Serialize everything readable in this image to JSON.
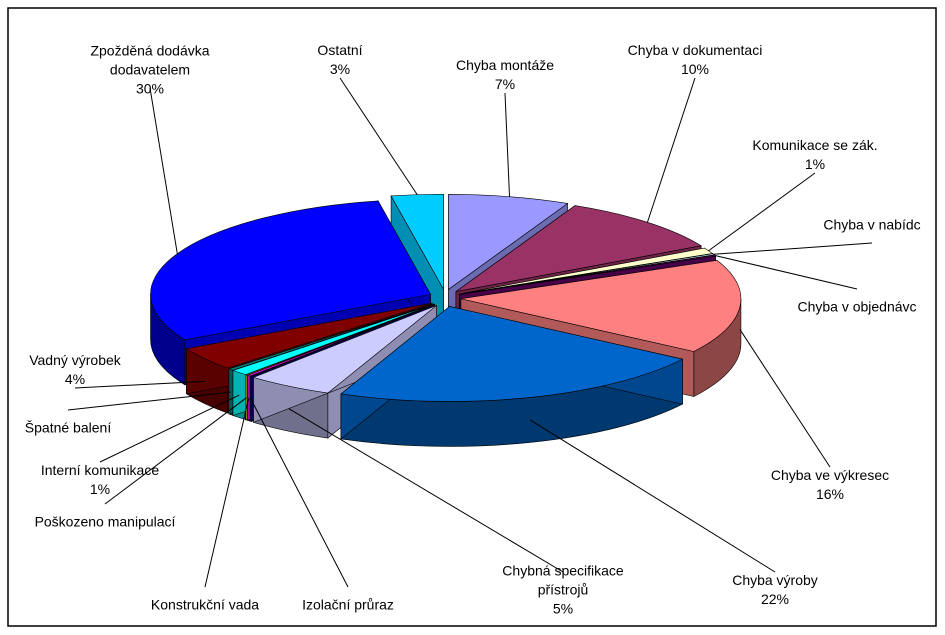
{
  "chart_data": {
    "type": "pie",
    "categories": [
      "Chyba montáže",
      "Chyba v dokumentaci",
      "Komunikace se zák.",
      "Chyba v nabídc",
      "Chyba v objednávc",
      "Chyba ve výkresec",
      "Chyba výroby",
      "Chybná specifikace přístrojů",
      "Izolační průraz",
      "Konstrukční vada",
      "Poškozeno  manipulací",
      "Interní komunikace",
      "Špatné balení",
      "Vadný výrobek",
      "Zpožděná dodávka dodavatelem",
      "Ostatní"
    ],
    "values": [
      7,
      10,
      1,
      0.2,
      0.2,
      16,
      22,
      5,
      0.1,
      0.2,
      0.1,
      1,
      0.3,
      4,
      30,
      3
    ],
    "value_labels": [
      "7%",
      "10%",
      "1%",
      null,
      null,
      "16%",
      "22%",
      "5%",
      null,
      null,
      null,
      "1%",
      null,
      "4%",
      "30%",
      "3%"
    ],
    "colors": [
      "#9999ff",
      "#993366",
      "#ffffcc",
      "#ccffff",
      "#660066",
      "#ff8080",
      "#0066cc",
      "#ccccff",
      "#000080",
      "#ff00ff",
      "#ffff00",
      "#00ffff",
      "#008080",
      "#800000",
      "#0000ff",
      "#00ccff"
    ]
  }
}
